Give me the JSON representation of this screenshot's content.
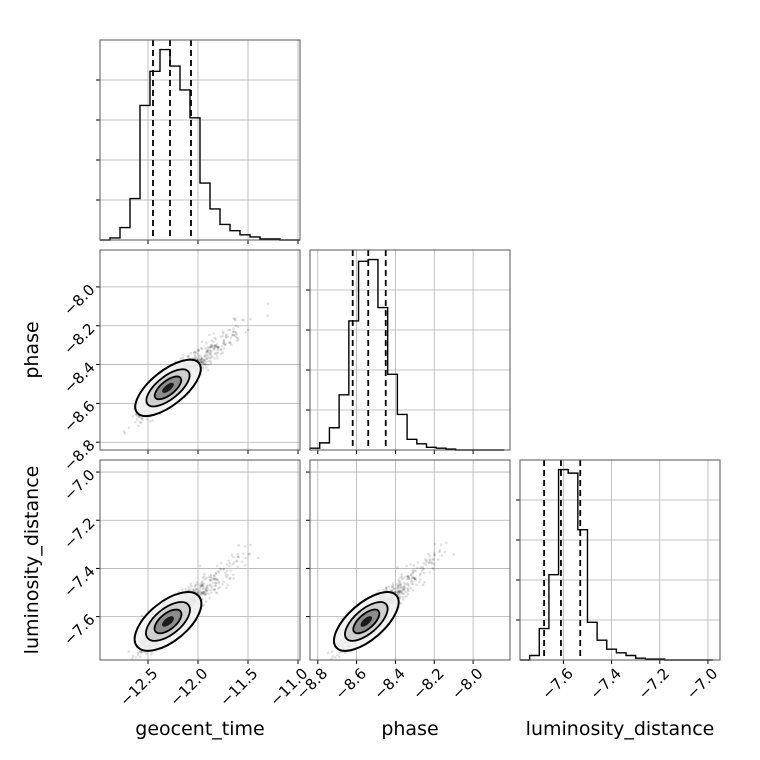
{
  "chart_data": {
    "type": "corner",
    "parameters": [
      "geocent_time",
      "phase",
      "luminosity_distance"
    ],
    "axis_labels": {
      "geocent_time": "geocent_time",
      "phase": "phase",
      "luminosity_distance": "luminosity_distance"
    },
    "ranges": {
      "geocent_time": [
        -12.98,
        -10.98
      ],
      "phase": [
        -8.84,
        -7.81
      ],
      "luminosity_distance": [
        -7.78,
        -6.95
      ]
    },
    "ticks": {
      "geocent_time": [
        -12.5,
        -12.0,
        -11.5,
        -11.0
      ],
      "phase": [
        -8.8,
        -8.6,
        -8.4,
        -8.2,
        -8.0
      ],
      "luminosity_distance": [
        -7.6,
        -7.4,
        -7.2,
        -7.0
      ]
    },
    "tick_labels": {
      "geocent_time": [
        "−12.5",
        "−12.0",
        "−11.5",
        "−11.0"
      ],
      "phase": [
        "−8.8",
        "−8.6",
        "−8.4",
        "−8.2",
        "−8.0"
      ],
      "luminosity_distance": [
        "−7.6",
        "−7.4",
        "−7.2",
        "−7.0"
      ]
    },
    "grid": true,
    "histograms": {
      "geocent_time": {
        "edges": [
          -12.98,
          -12.88,
          -12.78,
          -12.68,
          -12.58,
          -12.48,
          -12.38,
          -12.28,
          -12.18,
          -12.08,
          -11.98,
          -11.88,
          -11.78,
          -11.68,
          -11.58,
          -11.48,
          -11.38,
          -11.28,
          -11.18,
          -11.08,
          -10.98
        ],
        "counts": [
          0,
          2,
          12,
          40,
          130,
          163,
          184,
          168,
          145,
          118,
          55,
          30,
          15,
          9,
          5,
          3,
          1,
          1,
          0,
          0
        ],
        "quantiles": [
          -12.45,
          -12.28,
          -12.07
        ]
      },
      "phase": {
        "edges": [
          -8.84,
          -8.79,
          -8.74,
          -8.69,
          -8.64,
          -8.59,
          -8.54,
          -8.49,
          -8.44,
          -8.39,
          -8.34,
          -8.29,
          -8.24,
          -8.19,
          -8.14,
          -8.09,
          -8.04,
          -7.99,
          -7.94,
          -7.89,
          -7.84
        ],
        "counts": [
          2,
          8,
          25,
          62,
          145,
          212,
          214,
          160,
          85,
          40,
          12,
          7,
          3,
          2,
          1,
          0,
          0,
          0,
          0,
          0
        ],
        "quantiles": [
          -8.62,
          -8.54,
          -8.45
        ]
      },
      "luminosity_distance": {
        "edges": [
          -7.78,
          -7.74,
          -7.7,
          -7.66,
          -7.62,
          -7.58,
          -7.54,
          -7.5,
          -7.46,
          -7.42,
          -7.38,
          -7.34,
          -7.3,
          -7.26,
          -7.22,
          -7.18,
          -7.14,
          -7.1,
          -7.06,
          -7.02,
          -6.98
        ],
        "counts": [
          0,
          5,
          35,
          95,
          212,
          208,
          145,
          42,
          22,
          12,
          8,
          5,
          2,
          1,
          1,
          0,
          0,
          0,
          0,
          0
        ],
        "quantiles": [
          -7.68,
          -7.61,
          -7.53
        ]
      }
    },
    "pairs": [
      {
        "x": "geocent_time",
        "y": "phase",
        "center": [
          -12.3,
          -8.52
        ],
        "spread": [
          0.13,
          0.065
        ],
        "correlation": 0.85,
        "tail_to": [
          -11.2,
          -7.95
        ]
      },
      {
        "x": "geocent_time",
        "y": "luminosity_distance",
        "center": [
          -12.3,
          -7.62
        ],
        "spread": [
          0.13,
          0.055
        ],
        "correlation": 0.82,
        "tail_to": [
          -11.1,
          -7.0
        ]
      },
      {
        "x": "phase",
        "y": "luminosity_distance",
        "center": [
          -8.55,
          -7.62
        ],
        "spread": [
          0.065,
          0.055
        ],
        "correlation": 0.85,
        "tail_to": [
          -7.95,
          -7.0
        ]
      }
    ],
    "contour_levels": [
      0.12,
      0.39,
      0.68,
      0.86
    ]
  }
}
